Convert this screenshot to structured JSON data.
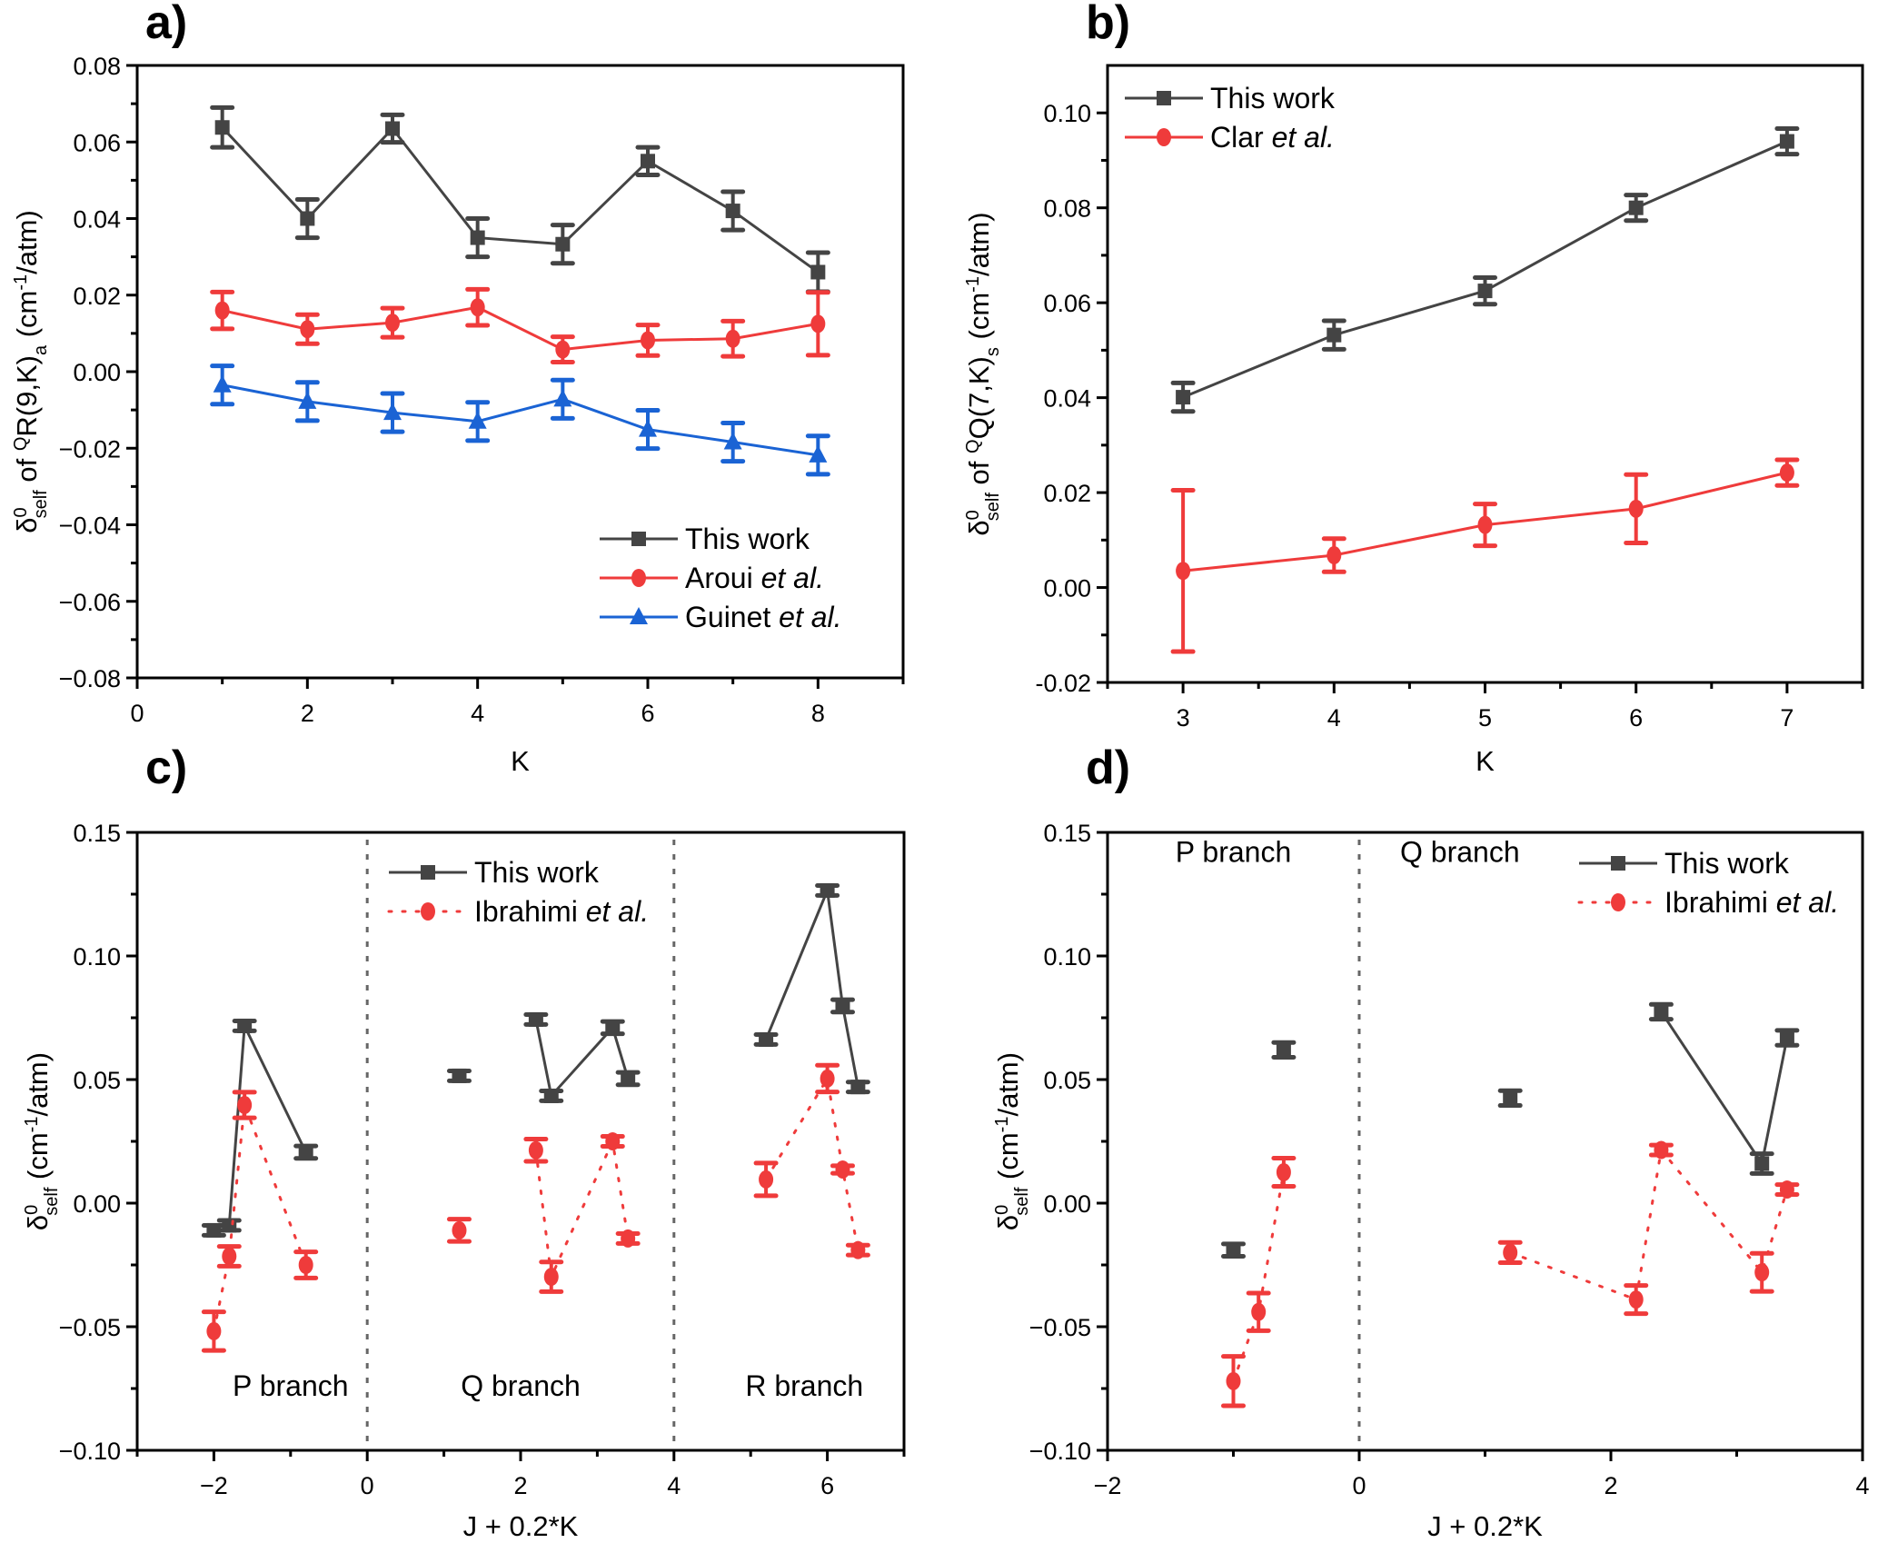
{
  "figure": {
    "colors": {
      "this_work": "#444444",
      "aroui": "#ef3b3b",
      "guinet": "#1a63d4",
      "clar": "#ef3b3b",
      "ibrahimi": "#ef3b3b"
    }
  },
  "chart_data": [
    {
      "id": "a",
      "panel_label": "a)",
      "type": "line",
      "xlabel": "K",
      "ylabel_parts": {
        "delta": "δ",
        "sup": "0",
        "sub": "self",
        "text": " of ",
        "pre_sup": "Q",
        "main": "R(9,K)",
        "main_sub": "a",
        "unit": " (cm",
        "unit_sup": "-1",
        "unit_end": "/atm)"
      },
      "xlim": [
        0,
        9
      ],
      "ylim": [
        -0.08,
        0.08
      ],
      "xticks": [
        0,
        2,
        4,
        6,
        8
      ],
      "xtick_labels": [
        "0",
        "2",
        "4",
        "6",
        "8"
      ],
      "xminor": [
        1,
        3,
        5,
        7,
        9
      ],
      "yticks": [
        -0.08,
        -0.06,
        -0.04,
        -0.02,
        0.0,
        0.02,
        0.04,
        0.06,
        0.08
      ],
      "ytick_labels": [
        "−0.08",
        "−0.06",
        "−0.04",
        "−0.02",
        "0.00",
        "0.02",
        "0.04",
        "0.06",
        "0.08"
      ],
      "yminor": [
        -0.07,
        -0.05,
        -0.03,
        -0.01,
        0.01,
        0.03,
        0.05,
        0.07
      ],
      "legend": {
        "position": "bottom-right"
      },
      "series": [
        {
          "name": "This work",
          "italic_suffix": "",
          "color_key": "this_work",
          "marker": "square",
          "line": "solid",
          "x": [
            1,
            2,
            3,
            4,
            5,
            6,
            7,
            8
          ],
          "y": [
            0.0638,
            0.04,
            0.0635,
            0.035,
            0.0333,
            0.055,
            0.042,
            0.026
          ],
          "err": [
            0.0052,
            0.005,
            0.0036,
            0.005,
            0.005,
            0.0036,
            0.005,
            0.0051
          ],
          "segments": [
            [
              0,
              7
            ]
          ]
        },
        {
          "name": "Aroui ",
          "italic_suffix": "et al.",
          "color_key": "aroui",
          "marker": "circle",
          "line": "solid",
          "x": [
            1,
            2,
            3,
            4,
            5,
            6,
            7,
            8
          ],
          "y": [
            0.016,
            0.0111,
            0.0128,
            0.0168,
            0.0058,
            0.0082,
            0.0086,
            0.0125
          ],
          "err": [
            0.0048,
            0.0038,
            0.0038,
            0.0047,
            0.0033,
            0.004,
            0.0046,
            0.0082
          ],
          "segments": [
            [
              0,
              7
            ]
          ]
        },
        {
          "name": "Guinet ",
          "italic_suffix": "et al.",
          "color_key": "guinet",
          "marker": "triangle",
          "line": "solid",
          "x": [
            1,
            2,
            3,
            4,
            5,
            6,
            7,
            8
          ],
          "y": [
            -0.0035,
            -0.0078,
            -0.0107,
            -0.013,
            -0.0072,
            -0.0151,
            -0.0184,
            -0.0218
          ],
          "err": [
            0.005,
            0.005,
            0.005,
            0.005,
            0.005,
            0.005,
            0.005,
            0.005
          ],
          "segments": [
            [
              0,
              7
            ]
          ]
        }
      ],
      "annotations": [],
      "dividers": []
    },
    {
      "id": "b",
      "panel_label": "b)",
      "type": "line",
      "xlabel": "K",
      "ylabel_parts": {
        "delta": "δ",
        "sup": "0",
        "sub": "self",
        "text": " of ",
        "pre_sup": "Q",
        "main": "Q(7,K)",
        "main_sub": "s",
        "unit": " (cm",
        "unit_sup": "-1",
        "unit_end": "/atm)"
      },
      "xlim": [
        2.5,
        7.5
      ],
      "ylim": [
        -0.02,
        0.11
      ],
      "xticks": [
        3,
        4,
        5,
        6,
        7
      ],
      "xtick_labels": [
        "3",
        "4",
        "5",
        "6",
        "7"
      ],
      "xminor": [
        2.5,
        3.5,
        4.5,
        5.5,
        6.5,
        7.5
      ],
      "yticks": [
        -0.02,
        0.0,
        0.02,
        0.04,
        0.06,
        0.08,
        0.1
      ],
      "ytick_labels": [
        "-0.02",
        "0.00",
        "0.02",
        "0.04",
        "0.06",
        "0.08",
        "0.10"
      ],
      "yminor": [
        -0.01,
        0.01,
        0.03,
        0.05,
        0.07,
        0.09
      ],
      "legend": {
        "position": "top-left"
      },
      "series": [
        {
          "name": "This work",
          "italic_suffix": "",
          "color_key": "this_work",
          "marker": "square",
          "line": "solid",
          "x": [
            3,
            4,
            5,
            6,
            7
          ],
          "y": [
            0.0401,
            0.0532,
            0.0625,
            0.08,
            0.094
          ],
          "err": [
            0.003,
            0.003,
            0.0028,
            0.0027,
            0.0027
          ],
          "segments": [
            [
              0,
              4
            ]
          ]
        },
        {
          "name": "Clar ",
          "italic_suffix": "et al.",
          "color_key": "clar",
          "marker": "circle",
          "line": "solid",
          "x": [
            3,
            4,
            5,
            6,
            7
          ],
          "y": [
            0.0035,
            0.0068,
            0.0132,
            0.0166,
            0.0242
          ],
          "err": [
            0.017,
            0.0035,
            0.0044,
            0.0072,
            0.0027
          ],
          "segments": [
            [
              0,
              4
            ]
          ]
        }
      ],
      "annotations": [],
      "dividers": []
    },
    {
      "id": "c",
      "panel_label": "c)",
      "type": "scatter",
      "xlabel": "J + 0.2*K",
      "ylabel_parts": {
        "delta": "δ",
        "sup": "0",
        "sub": "self",
        "text": "",
        "pre_sup": "",
        "main": "",
        "main_sub": "",
        "unit": " (cm",
        "unit_sup": "-1",
        "unit_end": "/atm)"
      },
      "xlim": [
        -3,
        7
      ],
      "ylim": [
        -0.1,
        0.15
      ],
      "xticks": [
        -2,
        0,
        2,
        4,
        6
      ],
      "xtick_labels": [
        "−2",
        "0",
        "2",
        "4",
        "6"
      ],
      "xminor": [
        -3,
        -1,
        1,
        3,
        5,
        7
      ],
      "yticks": [
        -0.1,
        -0.05,
        0.0,
        0.05,
        0.1,
        0.15
      ],
      "ytick_labels": [
        "−0.10",
        "−0.05",
        "0.00",
        "0.05",
        "0.10",
        "0.15"
      ],
      "yminor": [
        -0.075,
        -0.025,
        0.025,
        0.075,
        0.125
      ],
      "legend": {
        "position": "top-center"
      },
      "series": [
        {
          "name": "This work",
          "italic_suffix": "",
          "color_key": "this_work",
          "marker": "square",
          "line": "solid",
          "x": [
            -2.0,
            -1.8,
            -1.6,
            -0.8,
            1.2,
            2.2,
            2.4,
            3.2,
            3.4,
            5.2,
            6.0,
            6.2,
            6.4
          ],
          "y": [
            -0.011,
            -0.009,
            0.0717,
            0.0206,
            0.0515,
            0.0743,
            0.0434,
            0.071,
            0.0504,
            0.0662,
            0.1265,
            0.0798,
            0.047
          ],
          "err": [
            0.002,
            0.002,
            0.002,
            0.0025,
            0.002,
            0.002,
            0.002,
            0.0025,
            0.0025,
            0.002,
            0.002,
            0.0025,
            0.002
          ],
          "segments": [
            [
              1,
              3
            ],
            [
              5,
              8
            ],
            [
              9,
              12
            ]
          ]
        },
        {
          "name": "Ibrahimi ",
          "italic_suffix": "et al.",
          "color_key": "ibrahimi",
          "marker": "circle",
          "line": "dotted",
          "x": [
            -2.0,
            -1.8,
            -1.6,
            -0.8,
            1.2,
            2.2,
            2.4,
            3.2,
            3.4,
            5.2,
            6.0,
            6.2,
            6.4
          ],
          "y": [
            -0.0518,
            -0.0215,
            0.0397,
            -0.025,
            -0.011,
            0.0214,
            -0.0298,
            0.025,
            -0.0143,
            0.0096,
            0.0504,
            0.0136,
            -0.019
          ],
          "err": [
            0.0078,
            0.004,
            0.0052,
            0.0053,
            0.0045,
            0.0045,
            0.006,
            0.002,
            0.002,
            0.0066,
            0.0054,
            0.0015,
            0.002
          ],
          "segments": [
            [
              0,
              3
            ],
            [
              5,
              8
            ],
            [
              9,
              12
            ]
          ]
        }
      ],
      "annotations": [
        {
          "text": "P branch",
          "x": -1.0,
          "y": -0.078
        },
        {
          "text": "Q branch",
          "x": 2.0,
          "y": -0.078
        },
        {
          "text": "R branch",
          "x": 5.7,
          "y": -0.078
        }
      ],
      "dividers": [
        0,
        4
      ]
    },
    {
      "id": "d",
      "panel_label": "d)",
      "type": "scatter",
      "xlabel": "J + 0.2*K",
      "ylabel_parts": {
        "delta": "δ",
        "sup": "0",
        "sub": "self",
        "text": "",
        "pre_sup": "",
        "main": "",
        "main_sub": "",
        "unit": " (cm",
        "unit_sup": "-1",
        "unit_end": "/atm)"
      },
      "xlim": [
        -2,
        4
      ],
      "ylim": [
        -0.1,
        0.15
      ],
      "xticks": [
        -2,
        0,
        2,
        4
      ],
      "xtick_labels": [
        "−2",
        "0",
        "2",
        "4"
      ],
      "xminor": [
        -1,
        1,
        3
      ],
      "yticks": [
        -0.1,
        -0.05,
        0.0,
        0.05,
        0.1,
        0.15
      ],
      "ytick_labels": [
        "−0.10",
        "−0.05",
        "0.00",
        "0.05",
        "0.10",
        "0.15"
      ],
      "yminor": [
        -0.075,
        -0.025,
        0.025,
        0.075,
        0.125
      ],
      "legend": {
        "position": "top-right"
      },
      "series": [
        {
          "name": "This work",
          "italic_suffix": "",
          "color_key": "this_work",
          "marker": "square",
          "line": "solid",
          "x": [
            -1.0,
            -0.6,
            1.2,
            2.4,
            3.2,
            3.4
          ],
          "y": [
            -0.019,
            0.062,
            0.0425,
            0.0774,
            0.016,
            0.0669
          ],
          "err": [
            0.0025,
            0.003,
            0.003,
            0.003,
            0.004,
            0.003
          ],
          "segments": [
            [
              3,
              5
            ]
          ]
        },
        {
          "name": "Ibrahimi ",
          "italic_suffix": "et al.",
          "color_key": "ibrahimi",
          "marker": "circle",
          "line": "dotted",
          "x": [
            -1.0,
            -0.8,
            -0.6,
            1.2,
            2.2,
            2.4,
            3.2,
            3.4
          ],
          "y": [
            -0.072,
            -0.044,
            0.0125,
            -0.02,
            -0.039,
            0.0215,
            -0.028,
            0.0055
          ],
          "err": [
            0.01,
            0.0076,
            0.0057,
            0.0041,
            0.0057,
            0.002,
            0.0077,
            0.002
          ],
          "segments": [
            [
              0,
              2
            ],
            [
              3,
              7
            ]
          ]
        }
      ],
      "annotations": [
        {
          "text": "P branch",
          "x": -1.0,
          "y": 0.138
        },
        {
          "text": "Q branch",
          "x": 0.8,
          "y": 0.138
        }
      ],
      "dividers": [
        0
      ]
    }
  ]
}
